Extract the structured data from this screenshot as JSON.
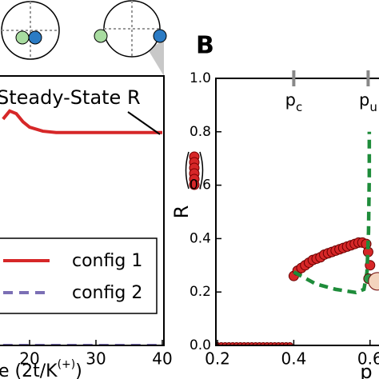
{
  "chart_data": [
    {
      "type": "line",
      "xlabel_parts": [
        "e (2t/K",
        "(+)",
        ")"
      ],
      "annotation": "Steady-State R",
      "x": [
        16,
        17,
        18,
        19,
        20,
        22,
        24,
        26,
        28,
        30,
        32,
        34,
        36,
        38,
        40
      ],
      "series": [
        {
          "name": "config 1",
          "color": "#d62728",
          "dash": false,
          "values": [
            0.84,
            0.87,
            0.86,
            0.83,
            0.81,
            0.795,
            0.79,
            0.79,
            0.79,
            0.79,
            0.79,
            0.79,
            0.79,
            0.79,
            0.79
          ]
        },
        {
          "name": "config 2",
          "color": "#7b6fb5",
          "dash": true,
          "values": [
            0,
            0,
            0,
            0,
            0,
            0,
            0,
            0,
            0,
            0,
            0,
            0,
            0,
            0,
            0
          ]
        }
      ],
      "xlim": [
        15.5,
        40
      ],
      "ylim": [
        0,
        1
      ],
      "xticks": [
        20,
        30,
        40
      ]
    },
    {
      "type": "scatter",
      "panel_label": "B",
      "xlabel": "p",
      "ylabel": "R",
      "top_ticks": [
        {
          "value": 0.4,
          "label": "p",
          "sub": "c"
        },
        {
          "value": 0.595,
          "label": "p",
          "sub": "u"
        }
      ],
      "series": [
        {
          "color": "#d62728",
          "marker": "circle",
          "x": [
            0.2,
            0.21,
            0.22,
            0.23,
            0.24,
            0.25,
            0.26,
            0.27,
            0.28,
            0.29,
            0.3,
            0.31,
            0.32,
            0.33,
            0.34,
            0.35,
            0.36,
            0.37,
            0.38,
            0.39,
            0.4,
            0.41,
            0.42,
            0.43,
            0.44,
            0.45,
            0.46,
            0.47,
            0.48,
            0.49,
            0.5,
            0.51,
            0.52,
            0.53,
            0.54,
            0.55,
            0.56,
            0.57,
            0.58,
            0.59,
            0.595,
            0.6
          ],
          "values": [
            0,
            0,
            0,
            0,
            0,
            0,
            0,
            0,
            0,
            0,
            0,
            0,
            0,
            0,
            0,
            0,
            0,
            0,
            0,
            0,
            0.26,
            0.28,
            0.29,
            0.3,
            0.31,
            0.32,
            0.325,
            0.33,
            0.34,
            0.345,
            0.35,
            0.355,
            0.36,
            0.365,
            0.37,
            0.375,
            0.38,
            0.385,
            0.385,
            0.38,
            0.35,
            0.3
          ]
        },
        {
          "color": "#1e8c3a",
          "marker": "dashed-line",
          "x": [
            0.4,
            0.458,
            0.51,
            0.563,
            0.584,
            0.592,
            0.596,
            0.598,
            0.598
          ],
          "values": [
            0.275,
            0.23,
            0.21,
            0.198,
            0.21,
            0.275,
            0.425,
            0.635,
            0.8
          ]
        },
        {
          "color": "#2a9a4a",
          "marker": "circle",
          "x": [
            0.596
          ],
          "values": [
            0.25
          ]
        },
        {
          "color": "#f3d3bd",
          "marker": "big-circle",
          "x": [
            0.619
          ],
          "values": [
            0.24
          ]
        }
      ],
      "xlim": [
        0.2,
        0.62
      ],
      "ylim": [
        0,
        1
      ],
      "xticks": [
        0.2,
        0.4,
        0.6
      ],
      "yticks": [
        {
          "value": 0,
          "label": "0.0"
        },
        0.2,
        0.4,
        0.6,
        0.8,
        {
          "value": 1,
          "label": "1.0"
        }
      ]
    }
  ]
}
